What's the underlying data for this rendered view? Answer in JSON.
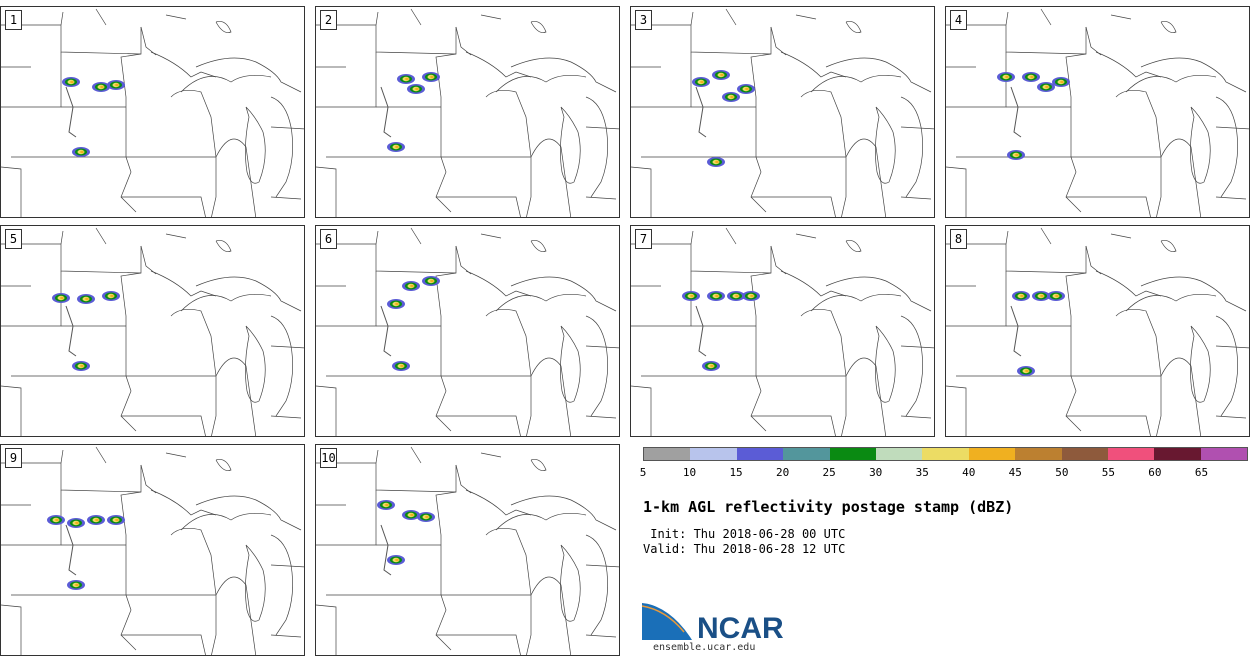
{
  "panels": [
    {
      "label": "1"
    },
    {
      "label": "2"
    },
    {
      "label": "3"
    },
    {
      "label": "4"
    },
    {
      "label": "5"
    },
    {
      "label": "6"
    },
    {
      "label": "7"
    },
    {
      "label": "8"
    },
    {
      "label": "9"
    },
    {
      "label": "10"
    }
  ],
  "colorbar": {
    "colors": [
      "#a0a0a0",
      "#b8c4ec",
      "#5b5cd6",
      "#53969c",
      "#0a8a12",
      "#c0dcbc",
      "#ecdc64",
      "#f0b020",
      "#bc8030",
      "#8e5a3c",
      "#f0507c",
      "#681830",
      "#b050b0"
    ],
    "ticks": [
      "5",
      "10",
      "15",
      "20",
      "25",
      "30",
      "35",
      "40",
      "45",
      "50",
      "55",
      "60",
      "65"
    ]
  },
  "title": "1-km AGL reflectivity postage stamp (dBZ)",
  "init_line": " Init: Thu 2018-06-28 00 UTC",
  "valid_line": "Valid: Thu 2018-06-28 12 UTC",
  "logo_text": "NCAR",
  "site": "ensemble.ucar.edu"
}
